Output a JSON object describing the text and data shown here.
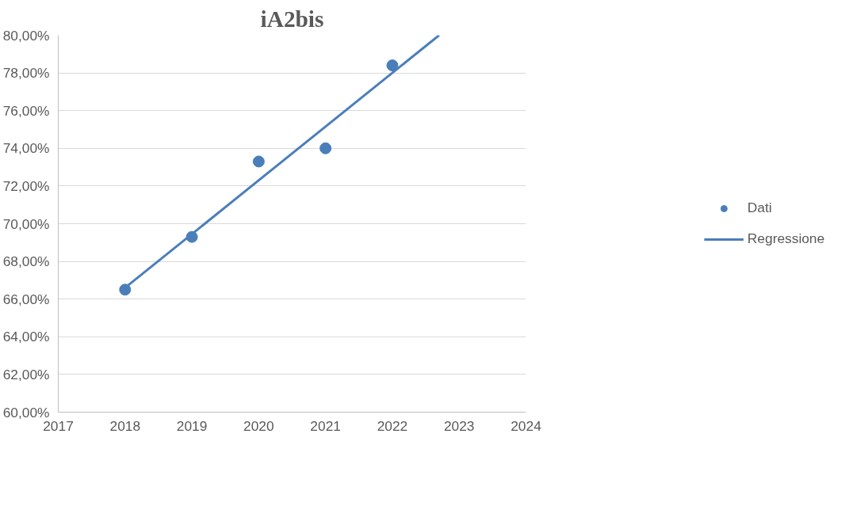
{
  "chart_data": {
    "type": "scatter",
    "title": "iA2bis",
    "series": [
      {
        "name": "Dati",
        "marker": "circle",
        "color": "#4a7ebb",
        "x": [
          2018,
          2019,
          2020,
          2021,
          2022
        ],
        "values": [
          66.5,
          69.3,
          73.3,
          74.0,
          78.4
        ]
      },
      {
        "name": "Regressione",
        "type": "line",
        "marker": "none",
        "line_style": "solid",
        "color": "#4a7ebb",
        "x": [
          2018,
          2022.7
        ],
        "values": [
          66.6,
          80.0
        ]
      }
    ],
    "xlim": [
      2017,
      2024
    ],
    "xticks": [
      2017,
      2018,
      2019,
      2020,
      2021,
      2022,
      2023,
      2024
    ],
    "ylim": [
      60,
      80
    ],
    "yticks": [
      {
        "value": 60,
        "label": "60,00%"
      },
      {
        "value": 62,
        "label": "62,00%"
      },
      {
        "value": 64,
        "label": "64,00%"
      },
      {
        "value": 66,
        "label": "66,00%"
      },
      {
        "value": 68,
        "label": "68,00%"
      },
      {
        "value": 70,
        "label": "70,00%"
      },
      {
        "value": 72,
        "label": "72,00%"
      },
      {
        "value": 74,
        "label": "74,00%"
      },
      {
        "value": 76,
        "label": "76,00%"
      },
      {
        "value": 78,
        "label": "78,00%"
      },
      {
        "value": 80,
        "label": "80,00%"
      }
    ],
    "grid": "y",
    "legend": "right"
  }
}
